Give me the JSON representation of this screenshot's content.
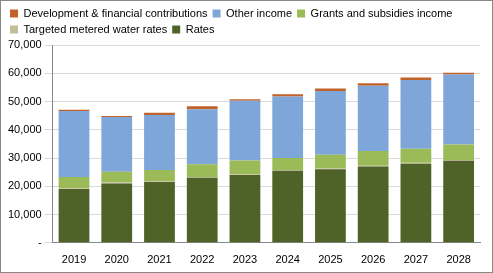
{
  "chart_data": {
    "type": "bar",
    "stacked": true,
    "grid": true,
    "legend": "top",
    "categories": [
      "2019",
      "2020",
      "2021",
      "2022",
      "2023",
      "2024",
      "2025",
      "2026",
      "2027",
      "2028"
    ],
    "series": [
      {
        "name": "Rates",
        "color": "#4f6228",
        "values": [
          19000,
          21000,
          21500,
          23000,
          24000,
          25500,
          26000,
          27000,
          28000,
          29000
        ]
      },
      {
        "name": "Targeted metered water rates",
        "color": "#c4bd97",
        "values": [
          300,
          300,
          300,
          300,
          300,
          300,
          300,
          300,
          300,
          300
        ]
      },
      {
        "name": "Grants and subsidies income",
        "color": "#9bbb59",
        "values": [
          4000,
          3800,
          4000,
          4500,
          4800,
          4200,
          4900,
          5200,
          5000,
          5500
        ]
      },
      {
        "name": "Other income",
        "color": "#7ea6d8",
        "values": [
          23300,
          19400,
          19400,
          19500,
          21200,
          21800,
          22500,
          23100,
          24300,
          24800
        ]
      },
      {
        "name": "Development & financial contributions",
        "color": "#c0622a",
        "values": [
          500,
          400,
          800,
          1000,
          500,
          800,
          900,
          900,
          900,
          600
        ]
      }
    ],
    "ylim": [
      0,
      70000
    ],
    "yticks": [
      {
        "value": 0,
        "label": "-"
      },
      {
        "value": 10000,
        "label": "10,000"
      },
      {
        "value": 20000,
        "label": "20,000"
      },
      {
        "value": 30000,
        "label": "30,000"
      },
      {
        "value": 40000,
        "label": "40,000"
      },
      {
        "value": 50000,
        "label": "50,000"
      },
      {
        "value": 60000,
        "label": "60,000"
      },
      {
        "value": 70000,
        "label": "70,000"
      }
    ]
  }
}
